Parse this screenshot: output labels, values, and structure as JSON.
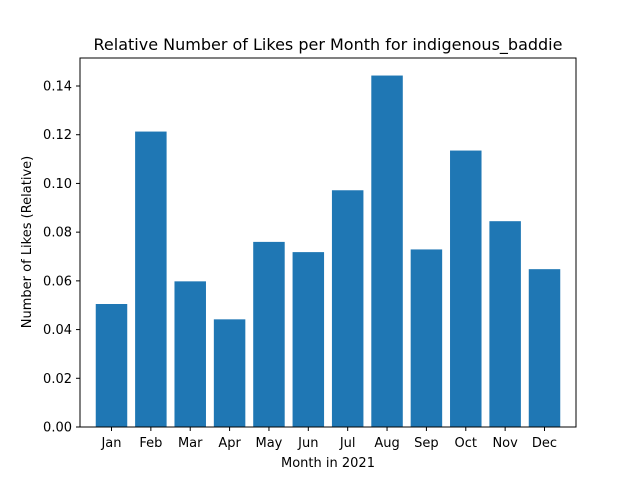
{
  "chart_data": {
    "type": "bar",
    "title": "Relative Number of Likes per Month for indigenous_baddie",
    "xlabel": "Month in 2021",
    "ylabel": "Number of Likes (Relative)",
    "categories": [
      "Jan",
      "Feb",
      "Mar",
      "Apr",
      "May",
      "Jun",
      "Jul",
      "Aug",
      "Sep",
      "Oct",
      "Nov",
      "Dec"
    ],
    "values": [
      0.0505,
      0.1213,
      0.0598,
      0.0442,
      0.076,
      0.0718,
      0.0972,
      0.1443,
      0.0729,
      0.1135,
      0.0845,
      0.0648
    ],
    "ylim": [
      0,
      0.1515
    ],
    "yticks": [
      0.0,
      0.02,
      0.04,
      0.06,
      0.08,
      0.1,
      0.12,
      0.14
    ],
    "ytick_labels": [
      "0.00",
      "0.02",
      "0.04",
      "0.06",
      "0.08",
      "0.10",
      "0.12",
      "0.14"
    ],
    "grid": false,
    "bar_color": "#1f77b4"
  }
}
